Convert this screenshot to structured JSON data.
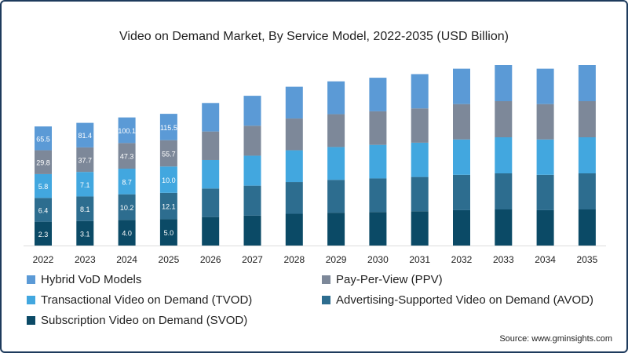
{
  "chart_data": {
    "type": "bar",
    "stacked": true,
    "title": "Video on Demand Market, By Service Model, 2022-2035 (USD Billion)",
    "xlabel": "",
    "ylabel": "",
    "categories": [
      "2022",
      "2023",
      "2024",
      "2025",
      "2026",
      "2027",
      "2028",
      "2029",
      "2030",
      "2031",
      "2032",
      "2033",
      "2034",
      "2035"
    ],
    "relative_bar_total": [
      66,
      68,
      71,
      73,
      79,
      83,
      88,
      91,
      93,
      95,
      98,
      100,
      98,
      100
    ],
    "series": [
      {
        "name": "Subscription Video on Demand (SVOD)",
        "color": "#0b4a66",
        "values": [
          2.3,
          3.1,
          4.0,
          5.0,
          null,
          null,
          null,
          null,
          null,
          null,
          null,
          null,
          null,
          null
        ]
      },
      {
        "name": "Advertising-Supported Video on Demand (AVOD)",
        "color": "#2d6d8f",
        "values": [
          6.4,
          8.1,
          10.2,
          12.1,
          null,
          null,
          null,
          null,
          null,
          null,
          null,
          null,
          null,
          null
        ]
      },
      {
        "name": "Transactional Video on Demand (TVOD)",
        "color": "#42a7df",
        "values": [
          5.8,
          7.1,
          8.7,
          10.0,
          null,
          null,
          null,
          null,
          null,
          null,
          null,
          null,
          null,
          null
        ]
      },
      {
        "name": "Pay-Per-View (PPV)",
        "color": "#7d8899",
        "values": [
          29.8,
          37.7,
          47.3,
          55.7,
          null,
          null,
          null,
          null,
          null,
          null,
          null,
          null,
          null,
          null
        ]
      },
      {
        "name": "Hybrid VoD Models",
        "color": "#5b9ad6",
        "values": [
          65.5,
          81.4,
          100.1,
          115.5,
          null,
          null,
          null,
          null,
          null,
          null,
          null,
          null,
          null,
          null
        ]
      }
    ],
    "legend_order": [
      4,
      3,
      2,
      1,
      0
    ],
    "legend_placement": "bottom",
    "grid": false
  },
  "source": "Source: www.gminsights.com"
}
